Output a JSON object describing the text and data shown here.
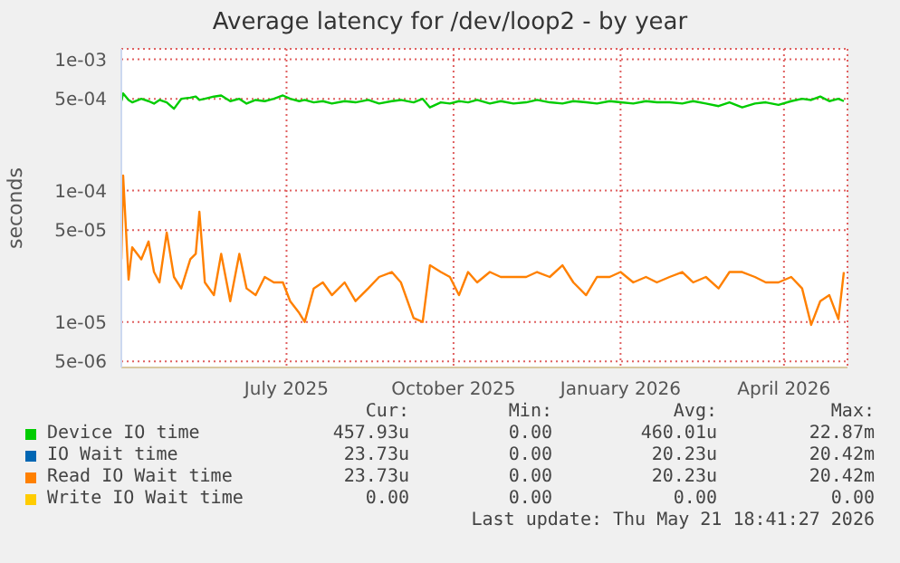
{
  "chart_data": {
    "type": "line",
    "title": "Average latency for /dev/loop2 - by year",
    "ylabel": "seconds",
    "log": true,
    "grid": true,
    "legend": "bottom",
    "marker": "none",
    "line_style": "solid",
    "x": [
      "2025-04-15",
      "2025-04-16",
      "2025-04-19",
      "2025-04-21",
      "2025-04-26",
      "2025-04-30",
      "2025-05-03",
      "2025-05-06",
      "2025-05-10",
      "2025-05-14",
      "2025-05-18",
      "2025-05-23",
      "2025-05-26",
      "2025-05-28",
      "2025-05-31",
      "2025-06-05",
      "2025-06-09",
      "2025-06-14",
      "2025-06-19",
      "2025-06-23",
      "2025-06-28",
      "2025-07-03",
      "2025-07-08",
      "2025-07-13",
      "2025-07-17",
      "2025-07-22",
      "2025-07-25",
      "2025-07-30",
      "2025-08-04",
      "2025-08-09",
      "2025-08-16",
      "2025-08-22",
      "2025-08-29",
      "2025-09-04",
      "2025-09-11",
      "2025-09-16",
      "2025-09-23",
      "2025-09-28",
      "2025-10-02",
      "2025-10-08",
      "2025-10-13",
      "2025-10-18",
      "2025-10-23",
      "2025-10-28",
      "2025-11-04",
      "2025-11-10",
      "2025-11-17",
      "2025-11-24",
      "2025-11-30",
      "2025-12-07",
      "2025-12-14",
      "2025-12-20",
      "2025-12-27",
      "2026-01-02",
      "2026-01-09",
      "2026-01-15",
      "2026-01-22",
      "2026-01-29",
      "2026-02-04",
      "2026-02-11",
      "2026-02-18",
      "2026-02-24",
      "2026-03-03",
      "2026-03-10",
      "2026-03-16",
      "2026-03-23",
      "2026-03-30",
      "2026-04-05",
      "2026-04-12",
      "2026-04-19",
      "2026-04-25",
      "2026-04-30",
      "2026-05-05",
      "2026-05-10",
      "2026-05-15",
      "2026-05-18"
    ],
    "xlim": [
      "2025-04-15",
      "2026-05-20"
    ],
    "xticks": [
      {
        "value": "2025-07-15",
        "label": "July 2025"
      },
      {
        "value": "2025-10-15",
        "label": "October 2025"
      },
      {
        "value": "2026-01-15",
        "label": "January 2026"
      },
      {
        "value": "2026-04-15",
        "label": "April 2026"
      }
    ],
    "ylim": [
      4.5e-06,
      0.0012
    ],
    "yticks": [
      {
        "value": 5e-06,
        "label": "5e-06"
      },
      {
        "value": 1e-05,
        "label": "1e-05"
      },
      {
        "value": 5e-05,
        "label": "5e-05"
      },
      {
        "value": 0.0001,
        "label": "1e-04"
      },
      {
        "value": 0.0005,
        "label": "5e-04"
      },
      {
        "value": 0.001,
        "label": "1e-03"
      }
    ],
    "series": [
      {
        "name": "Device IO time",
        "color": "#00cc00",
        "values": [
          0.00048,
          0.00055,
          0.00049,
          0.00047,
          0.0005,
          0.00048,
          0.00046,
          0.00049,
          0.00047,
          0.00042,
          0.0005,
          0.00051,
          0.00052,
          0.00049,
          0.0005,
          0.00052,
          0.00053,
          0.00048,
          0.0005,
          0.00046,
          0.00049,
          0.00048,
          0.0005,
          0.00053,
          0.0005,
          0.00048,
          0.00049,
          0.00047,
          0.00048,
          0.00046,
          0.00048,
          0.00047,
          0.00049,
          0.00046,
          0.00048,
          0.00049,
          0.00047,
          0.0005,
          0.00043,
          0.00047,
          0.00046,
          0.00048,
          0.00047,
          0.00049,
          0.00046,
          0.00048,
          0.00046,
          0.00047,
          0.00049,
          0.00047,
          0.00046,
          0.00048,
          0.00047,
          0.00046,
          0.00048,
          0.00047,
          0.00046,
          0.00048,
          0.00047,
          0.00047,
          0.00046,
          0.00048,
          0.00046,
          0.00044,
          0.00047,
          0.00043,
          0.00046,
          0.00047,
          0.00045,
          0.00048,
          0.0005,
          0.00049,
          0.00052,
          0.00048,
          0.0005,
          0.00048
        ]
      },
      {
        "name": "IO Wait time",
        "color": "#0066b3",
        "values": [
          null,
          null,
          null,
          null,
          null,
          null,
          null,
          null,
          null,
          null,
          null,
          null,
          null,
          null,
          null,
          null,
          null,
          null,
          null,
          null,
          null,
          null,
          null,
          null,
          null,
          null,
          null,
          null,
          null,
          null,
          null,
          null,
          null,
          null,
          null,
          null,
          null,
          null,
          null,
          null,
          null,
          null,
          null,
          null,
          null,
          null,
          null,
          null,
          null,
          null,
          null,
          null,
          null,
          null,
          null,
          null,
          null,
          null,
          null,
          null,
          null,
          null,
          null,
          null,
          null,
          null,
          null,
          null,
          null,
          null,
          null,
          null,
          null,
          null,
          null,
          null
        ]
      },
      {
        "name": "Read IO Wait time",
        "color": "#ff8000",
        "values": [
          3e-05,
          0.00013,
          2.1e-05,
          3.7e-05,
          3e-05,
          4.1e-05,
          2.4e-05,
          2e-05,
          4.8e-05,
          2.2e-05,
          1.8e-05,
          3e-05,
          3.3e-05,
          6.9e-05,
          2e-05,
          1.6e-05,
          3.3e-05,
          1.44e-05,
          3.3e-05,
          1.8e-05,
          1.6e-05,
          2.2e-05,
          2e-05,
          2e-05,
          1.44e-05,
          1.17e-05,
          1e-05,
          1.8e-05,
          2e-05,
          1.6e-05,
          2e-05,
          1.44e-05,
          1.8e-05,
          2.2e-05,
          2.4e-05,
          2e-05,
          1.07e-05,
          1e-05,
          2.7e-05,
          2.4e-05,
          2.2e-05,
          1.6e-05,
          2.4e-05,
          2e-05,
          2.4e-05,
          2.2e-05,
          2.2e-05,
          2.2e-05,
          2.4e-05,
          2.2e-05,
          2.7e-05,
          2e-05,
          1.6e-05,
          2.2e-05,
          2.2e-05,
          2.4e-05,
          2e-05,
          2.2e-05,
          2e-05,
          2.2e-05,
          2.4e-05,
          2e-05,
          2.2e-05,
          1.8e-05,
          2.4e-05,
          2.4e-05,
          2.2e-05,
          2e-05,
          2e-05,
          2.2e-05,
          1.8e-05,
          9.5e-06,
          1.44e-05,
          1.6e-05,
          1.05e-05,
          2.4e-05
        ]
      },
      {
        "name": "Write IO Wait time",
        "color": "#ffcc00",
        "values": [
          null,
          null,
          null,
          null,
          null,
          null,
          null,
          null,
          null,
          null,
          null,
          null,
          null,
          null,
          null,
          null,
          null,
          null,
          null,
          null,
          null,
          null,
          null,
          null,
          null,
          null,
          null,
          null,
          null,
          null,
          null,
          null,
          null,
          null,
          null,
          null,
          null,
          null,
          null,
          null,
          null,
          null,
          null,
          null,
          null,
          null,
          null,
          null,
          null,
          null,
          null,
          null,
          null,
          null,
          null,
          null,
          null,
          null,
          null,
          null,
          null,
          null,
          null,
          null,
          null,
          null,
          null,
          null,
          null,
          null,
          null,
          null,
          null,
          null,
          null,
          null
        ]
      }
    ],
    "annotations": [
      "Cur:",
      "Min:",
      "Avg:",
      "Max:",
      "457.93u",
      "0.00",
      "460.01u",
      "22.87m",
      "23.73u",
      "0.00",
      "20.23u",
      "20.42m",
      "23.73u",
      "0.00",
      "20.23u",
      "20.42m",
      "0.00",
      "0.00",
      "0.00",
      "0.00",
      "Last update: Thu May 21 18:41:27 2026"
    ]
  }
}
